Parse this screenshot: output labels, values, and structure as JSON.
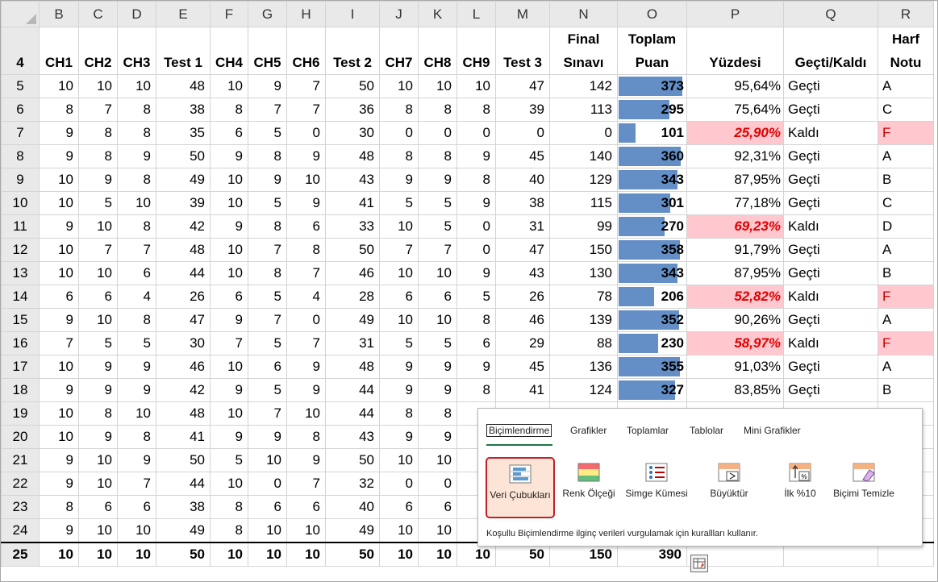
{
  "columns": [
    "B",
    "C",
    "D",
    "E",
    "F",
    "G",
    "H",
    "I",
    "J",
    "K",
    "L",
    "M",
    "N",
    "O",
    "P",
    "Q",
    "R"
  ],
  "header_row": {
    "row": "4",
    "labels": [
      "CH1",
      "CH2",
      "CH3",
      "Test 1",
      "CH4",
      "CH5",
      "CH6",
      "Test 2",
      "CH7",
      "CH8",
      "CH9",
      "Test 3",
      "Final Sınavı",
      "Toplam Puan",
      "Yüzdesi",
      "Geçti/Kaldı",
      "Harf Notu"
    ]
  },
  "rows": [
    {
      "row": "5",
      "vals": [
        "10",
        "10",
        "10",
        "48",
        "10",
        "9",
        "7",
        "50",
        "10",
        "10",
        "10",
        "47",
        "142"
      ],
      "total": "373",
      "pct": "95,64%",
      "status": "Geçti",
      "grade": "A",
      "fail": false
    },
    {
      "row": "6",
      "vals": [
        "8",
        "7",
        "8",
        "38",
        "8",
        "7",
        "7",
        "36",
        "8",
        "8",
        "8",
        "39",
        "113"
      ],
      "total": "295",
      "pct": "75,64%",
      "status": "Geçti",
      "grade": "C",
      "fail": false
    },
    {
      "row": "7",
      "vals": [
        "9",
        "8",
        "8",
        "35",
        "6",
        "5",
        "0",
        "30",
        "0",
        "0",
        "0",
        "0",
        "0"
      ],
      "total": "101",
      "pct": "25,90%",
      "status": "Kaldı",
      "grade": "F",
      "fail": true
    },
    {
      "row": "8",
      "vals": [
        "9",
        "8",
        "9",
        "50",
        "9",
        "8",
        "9",
        "48",
        "8",
        "8",
        "9",
        "45",
        "140"
      ],
      "total": "360",
      "pct": "92,31%",
      "status": "Geçti",
      "grade": "A",
      "fail": false
    },
    {
      "row": "9",
      "vals": [
        "10",
        "9",
        "8",
        "49",
        "10",
        "9",
        "10",
        "43",
        "9",
        "9",
        "8",
        "40",
        "129"
      ],
      "total": "343",
      "pct": "87,95%",
      "status": "Geçti",
      "grade": "B",
      "fail": false
    },
    {
      "row": "10",
      "vals": [
        "10",
        "5",
        "10",
        "39",
        "10",
        "5",
        "9",
        "41",
        "5",
        "5",
        "9",
        "38",
        "115"
      ],
      "total": "301",
      "pct": "77,18%",
      "status": "Geçti",
      "grade": "C",
      "fail": false
    },
    {
      "row": "11",
      "vals": [
        "9",
        "10",
        "8",
        "42",
        "9",
        "8",
        "6",
        "33",
        "10",
        "5",
        "0",
        "31",
        "99"
      ],
      "total": "270",
      "pct": "69,23%",
      "status": "Kaldı",
      "grade": "D",
      "fail": true
    },
    {
      "row": "12",
      "vals": [
        "10",
        "7",
        "7",
        "48",
        "10",
        "7",
        "8",
        "50",
        "7",
        "7",
        "0",
        "47",
        "150"
      ],
      "total": "358",
      "pct": "91,79%",
      "status": "Geçti",
      "grade": "A",
      "fail": false
    },
    {
      "row": "13",
      "vals": [
        "10",
        "10",
        "6",
        "44",
        "10",
        "8",
        "7",
        "46",
        "10",
        "10",
        "9",
        "43",
        "130"
      ],
      "total": "343",
      "pct": "87,95%",
      "status": "Geçti",
      "grade": "B",
      "fail": false
    },
    {
      "row": "14",
      "vals": [
        "6",
        "6",
        "4",
        "26",
        "6",
        "5",
        "4",
        "28",
        "6",
        "6",
        "5",
        "26",
        "78"
      ],
      "total": "206",
      "pct": "52,82%",
      "status": "Kaldı",
      "grade": "F",
      "fail": true
    },
    {
      "row": "15",
      "vals": [
        "9",
        "10",
        "8",
        "47",
        "9",
        "7",
        "0",
        "49",
        "10",
        "10",
        "8",
        "46",
        "139"
      ],
      "total": "352",
      "pct": "90,26%",
      "status": "Geçti",
      "grade": "A",
      "fail": false
    },
    {
      "row": "16",
      "vals": [
        "7",
        "5",
        "5",
        "30",
        "7",
        "5",
        "7",
        "31",
        "5",
        "5",
        "6",
        "29",
        "88"
      ],
      "total": "230",
      "pct": "58,97%",
      "status": "Kaldı",
      "grade": "F",
      "fail": true
    },
    {
      "row": "17",
      "vals": [
        "10",
        "9",
        "9",
        "46",
        "10",
        "6",
        "9",
        "48",
        "9",
        "9",
        "9",
        "45",
        "136"
      ],
      "total": "355",
      "pct": "91,03%",
      "status": "Geçti",
      "grade": "A",
      "fail": false
    },
    {
      "row": "18",
      "vals": [
        "9",
        "9",
        "9",
        "42",
        "9",
        "5",
        "9",
        "44",
        "9",
        "9",
        "8",
        "41",
        "124"
      ],
      "total": "327",
      "pct": "83,85%",
      "status": "Geçti",
      "grade": "B",
      "fail": false
    },
    {
      "row": "19",
      "vals": [
        "10",
        "8",
        "10",
        "48",
        "10",
        "7",
        "10",
        "44",
        "8",
        "8",
        "",
        "",
        ""
      ],
      "total": "",
      "pct": "",
      "status": "",
      "grade": "",
      "fail": false
    },
    {
      "row": "20",
      "vals": [
        "10",
        "9",
        "8",
        "41",
        "9",
        "9",
        "8",
        "43",
        "9",
        "9",
        "",
        "",
        ""
      ],
      "total": "",
      "pct": "",
      "status": "",
      "grade": "",
      "fail": false
    },
    {
      "row": "21",
      "vals": [
        "9",
        "10",
        "9",
        "50",
        "5",
        "10",
        "9",
        "50",
        "10",
        "10",
        "",
        "",
        ""
      ],
      "total": "",
      "pct": "",
      "status": "",
      "grade": "",
      "fail": false
    },
    {
      "row": "22",
      "vals": [
        "9",
        "10",
        "7",
        "44",
        "10",
        "0",
        "7",
        "32",
        "0",
        "0",
        "",
        "",
        ""
      ],
      "total": "",
      "pct": "",
      "status": "",
      "grade": "",
      "fail": false
    },
    {
      "row": "23",
      "vals": [
        "8",
        "6",
        "6",
        "38",
        "8",
        "6",
        "6",
        "40",
        "6",
        "6",
        "",
        "",
        ""
      ],
      "total": "",
      "pct": "",
      "status": "",
      "grade": "",
      "fail": false
    },
    {
      "row": "24",
      "vals": [
        "9",
        "10",
        "10",
        "49",
        "8",
        "10",
        "10",
        "49",
        "10",
        "10",
        "",
        "",
        ""
      ],
      "total": "",
      "pct": "",
      "status": "",
      "grade": "",
      "fail": false
    }
  ],
  "total_row": {
    "row": "25",
    "vals": [
      "10",
      "10",
      "10",
      "50",
      "10",
      "10",
      "10",
      "50",
      "10",
      "10",
      "10",
      "50",
      "150"
    ],
    "total": "390"
  },
  "bar_max": 390,
  "quick_analysis": {
    "tabs": [
      "Biçimlendirme",
      "Grafikler",
      "Toplamlar",
      "Tablolar",
      "Mini Grafikler"
    ],
    "active_tab": "Biçimlendirme",
    "tools": [
      {
        "label": "Veri Çubukları",
        "icon": "data-bars-icon",
        "selected": true
      },
      {
        "label": "Renk Ölçeği",
        "icon": "color-scale-icon",
        "selected": false
      },
      {
        "label": "Simge Kümesi",
        "icon": "icon-set-icon",
        "selected": false
      },
      {
        "label": "Büyüktür",
        "icon": "greater-than-icon",
        "selected": false
      },
      {
        "label": "İlk %10",
        "icon": "top-10-percent-icon",
        "selected": false
      },
      {
        "label": "Biçimi Temizle",
        "icon": "clear-format-icon",
        "selected": false
      }
    ],
    "hint": "Koşullu Biçimlendirme ilginç verileri vurgulamak için kurallları kullanır."
  },
  "colors": {
    "data_bar": "#638ec6",
    "fail_fill": "#ffc7ce",
    "fail_text": "#e00000",
    "tab_underline": "#217346",
    "selected_border": "#c0202a"
  }
}
